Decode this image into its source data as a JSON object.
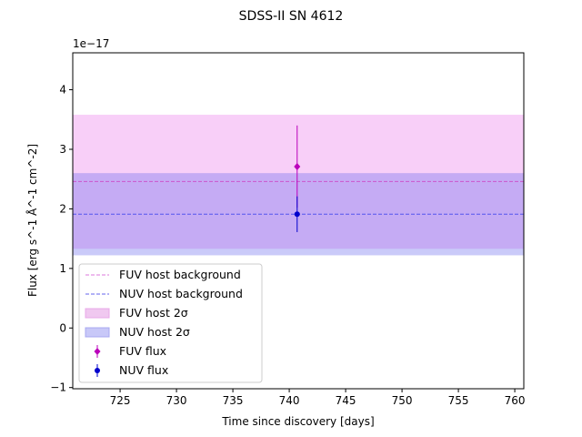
{
  "chart_data": {
    "type": "scatter",
    "title": "SDSS-II SN 4612",
    "xlabel": "Time since discovery [days]",
    "ylabel": "Flux [erg s^-1 Å^-1 cm^-2]",
    "y_scale_label": "1e−17",
    "xlim": [
      720.8,
      760.8
    ],
    "ylim": [
      -1.02,
      4.62
    ],
    "xticks": [
      725,
      730,
      735,
      740,
      745,
      750,
      755,
      760
    ],
    "yticks": [
      -1,
      0,
      1,
      2,
      3,
      4
    ],
    "grid": false,
    "legend_position": "lower-left",
    "bands": [
      {
        "name": "FUV host 2σ",
        "y0": 1.33,
        "y1": 3.58,
        "color": "#ee88ee",
        "opacity": 0.4
      },
      {
        "name": "NUV host 2σ",
        "y0": 1.22,
        "y1": 2.6,
        "color": "#6666ee",
        "opacity": 0.35
      }
    ],
    "hlines": [
      {
        "name": "FUV host background",
        "y": 2.46,
        "color": "#cc55cc"
      },
      {
        "name": "NUV host background",
        "y": 1.91,
        "color": "#5555ee"
      }
    ],
    "series": [
      {
        "name": "FUV flux",
        "marker": "diamond",
        "color": "#bb00bb",
        "x": [
          740.7
        ],
        "y": [
          2.71
        ],
        "yerr": [
          0.69
        ]
      },
      {
        "name": "NUV flux",
        "marker": "circle",
        "color": "#0000cc",
        "x": [
          740.7
        ],
        "y": [
          1.91
        ],
        "yerr": [
          0.3
        ]
      }
    ],
    "legend": [
      {
        "label": "FUV host background",
        "kind": "dashed",
        "color": "#dd77dd"
      },
      {
        "label": "NUV host background",
        "kind": "dashed",
        "color": "#6666ee"
      },
      {
        "label": "FUV host 2σ",
        "kind": "patch",
        "color": "#f0c8f0",
        "edge": "#e8a8e8"
      },
      {
        "label": "NUV host 2σ",
        "kind": "patch",
        "color": "#c8c8f8",
        "edge": "#a8a8f0"
      },
      {
        "label": "FUV flux",
        "kind": "diamond",
        "color": "#bb00bb"
      },
      {
        "label": "NUV flux",
        "kind": "circle",
        "color": "#0000cc"
      }
    ]
  }
}
